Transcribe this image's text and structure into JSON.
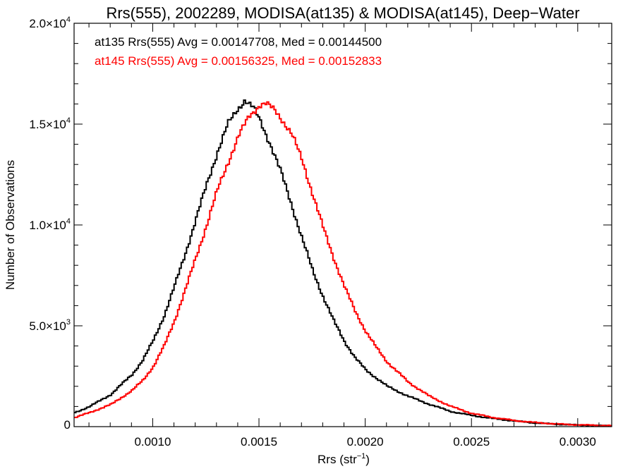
{
  "chart_data": {
    "type": "line",
    "subtype": "step-histogram",
    "title": "Rrs(555), 2002289, MODISA(at135) & MODISA(at145), Deep−Water",
    "xlabel": "Rrs (str",
    "xlabel_sup": "−1",
    "xlabel_close": ")",
    "ylabel": "Number of Observations",
    "xlim": [
      0.00063,
      0.00316
    ],
    "ylim": [
      0,
      20000
    ],
    "grid": false,
    "x_ticks": [
      {
        "value": 0.001,
        "label": "0.0010"
      },
      {
        "value": 0.0015,
        "label": "0.0015"
      },
      {
        "value": 0.002,
        "label": "0.0020"
      },
      {
        "value": 0.0025,
        "label": "0.0025"
      },
      {
        "value": 0.003,
        "label": "0.0030"
      }
    ],
    "y_ticks": [
      {
        "value": 0,
        "mant": "0",
        "exp": ""
      },
      {
        "value": 5000,
        "mant": "5.0×10",
        "exp": "3"
      },
      {
        "value": 10000,
        "mant": "1.0×10",
        "exp": "4"
      },
      {
        "value": 15000,
        "mant": "1.5×10",
        "exp": "4"
      },
      {
        "value": 20000,
        "mant": "2.0×10",
        "exp": "4"
      }
    ],
    "legend_position": "top-left",
    "series": [
      {
        "name": "at135 Rrs(555) Avg = 0.00147708, Med = 0.00144500",
        "color": "#000000",
        "x": [
          0.00063,
          0.0007,
          0.0008,
          0.0009,
          0.00095,
          0.001,
          0.00105,
          0.0011,
          0.00115,
          0.0012,
          0.00125,
          0.0013,
          0.00135,
          0.0014,
          0.00143,
          0.00147,
          0.0015,
          0.00155,
          0.0016,
          0.00165,
          0.0017,
          0.00175,
          0.0018,
          0.00185,
          0.0019,
          0.00195,
          0.002,
          0.0021,
          0.0022,
          0.0023,
          0.0024,
          0.0025,
          0.0026,
          0.0027,
          0.0028,
          0.0029,
          0.003,
          0.0031,
          0.00316
        ],
        "y": [
          700,
          1000,
          1600,
          2600,
          3300,
          4300,
          5500,
          7000,
          8600,
          10300,
          12000,
          13600,
          15000,
          15800,
          16200,
          15800,
          15200,
          14000,
          12600,
          11000,
          9300,
          7700,
          6400,
          5200,
          4200,
          3400,
          2800,
          2000,
          1500,
          1100,
          750,
          550,
          400,
          280,
          180,
          120,
          80,
          50,
          40
        ]
      },
      {
        "name": "at145 Rrs(555) Avg = 0.00156325, Med = 0.00152833",
        "color": "#ff0000",
        "x": [
          0.00063,
          0.0007,
          0.0008,
          0.0009,
          0.00095,
          0.001,
          0.00105,
          0.0011,
          0.00115,
          0.0012,
          0.00125,
          0.0013,
          0.00135,
          0.0014,
          0.00145,
          0.0015,
          0.00153,
          0.00157,
          0.0016,
          0.00165,
          0.0017,
          0.00175,
          0.0018,
          0.00185,
          0.0019,
          0.00195,
          0.002,
          0.00205,
          0.0021,
          0.0022,
          0.0023,
          0.0024,
          0.0025,
          0.0026,
          0.0027,
          0.0028,
          0.0029,
          0.003,
          0.0031,
          0.00316
        ],
        "y": [
          450,
          700,
          1100,
          1800,
          2300,
          3000,
          4000,
          5300,
          6800,
          8400,
          10000,
          11700,
          13100,
          14400,
          15400,
          15950,
          16000,
          15700,
          15300,
          14500,
          13200,
          11500,
          9800,
          8300,
          6900,
          5700,
          4700,
          3900,
          3200,
          2200,
          1500,
          1000,
          650,
          450,
          300,
          200,
          130,
          90,
          60,
          50
        ]
      }
    ]
  }
}
